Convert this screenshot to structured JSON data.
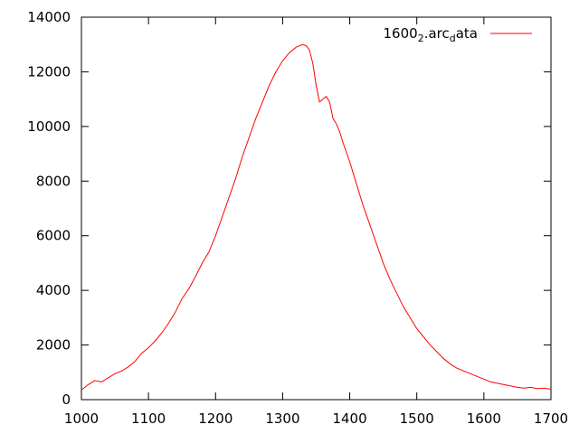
{
  "chart_data": {
    "type": "line",
    "title": "",
    "xlabel": "",
    "ylabel": "",
    "xlim": [
      1000,
      1700
    ],
    "ylim": [
      0,
      14000
    ],
    "grid": false,
    "legend_position": "top-right",
    "x_ticks": [
      1000,
      1100,
      1200,
      1300,
      1400,
      1500,
      1600,
      1700
    ],
    "y_ticks": [
      0,
      2000,
      4000,
      6000,
      8000,
      10000,
      12000,
      14000
    ],
    "series": [
      {
        "name": "1600_2.arc_data",
        "legend_parts": {
          "base": "1600",
          "sub1": "2",
          "mid": ".arc",
          "sub2": "d",
          "end": "ata"
        },
        "color": "#ff0000",
        "x": [
          1000,
          1010,
          1020,
          1030,
          1040,
          1050,
          1060,
          1070,
          1080,
          1090,
          1100,
          1110,
          1120,
          1130,
          1140,
          1150,
          1160,
          1170,
          1180,
          1190,
          1200,
          1210,
          1220,
          1230,
          1240,
          1250,
          1260,
          1270,
          1280,
          1290,
          1300,
          1310,
          1320,
          1330,
          1335,
          1340,
          1345,
          1350,
          1355,
          1360,
          1365,
          1370,
          1375,
          1380,
          1385,
          1390,
          1400,
          1410,
          1420,
          1430,
          1440,
          1450,
          1460,
          1470,
          1480,
          1490,
          1500,
          1510,
          1520,
          1530,
          1540,
          1550,
          1560,
          1570,
          1580,
          1590,
          1600,
          1610,
          1620,
          1630,
          1640,
          1650,
          1660,
          1670,
          1680,
          1690,
          1700
        ],
        "y": [
          350,
          550,
          700,
          650,
          800,
          950,
          1050,
          1200,
          1400,
          1700,
          1900,
          2150,
          2450,
          2800,
          3200,
          3700,
          4050,
          4500,
          5000,
          5400,
          6000,
          6700,
          7400,
          8100,
          8900,
          9600,
          10300,
          10900,
          11500,
          12000,
          12400,
          12700,
          12900,
          13000,
          12950,
          12800,
          12300,
          11500,
          10900,
          11000,
          11100,
          10900,
          10300,
          10100,
          9800,
          9400,
          8700,
          7900,
          7100,
          6400,
          5700,
          5000,
          4400,
          3900,
          3400,
          3000,
          2600,
          2300,
          2000,
          1750,
          1500,
          1300,
          1150,
          1050,
          950,
          850,
          750,
          650,
          600,
          550,
          500,
          450,
          420,
          450,
          400,
          420,
          380
        ]
      }
    ]
  }
}
